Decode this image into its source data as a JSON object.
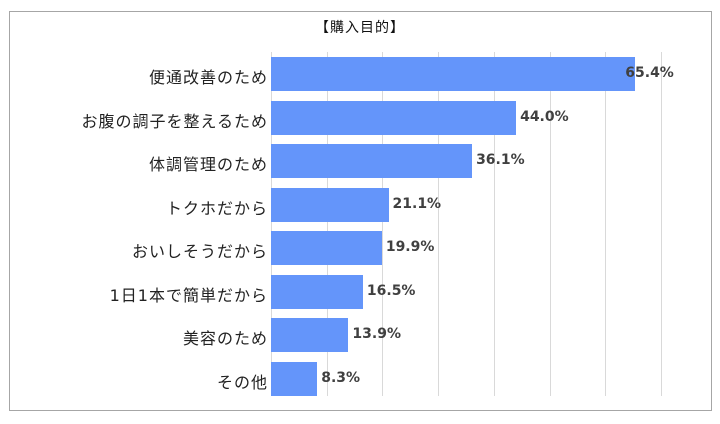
{
  "chart_data": {
    "type": "bar",
    "orientation": "horizontal",
    "title": "【購入目的】",
    "xlabel": "",
    "ylabel": "",
    "xlim": [
      0,
      70
    ],
    "grid": true,
    "gridline_step": 10,
    "legend": null,
    "bar_color": "#6495fa",
    "categories": [
      "便通改善のため",
      "お腹の調子を整えるため",
      "体調管理のため",
      "トクホだから",
      "おいしそうだから",
      "1日1本で簡単だから",
      "美容のため",
      "その他"
    ],
    "values": [
      65.4,
      44.0,
      36.1,
      21.1,
      19.9,
      16.5,
      13.9,
      8.3
    ],
    "value_labels": [
      "65.4%",
      "44.0%",
      "36.1%",
      "21.1%",
      "19.9%",
      "16.5%",
      "13.9%",
      "8.3%"
    ]
  }
}
